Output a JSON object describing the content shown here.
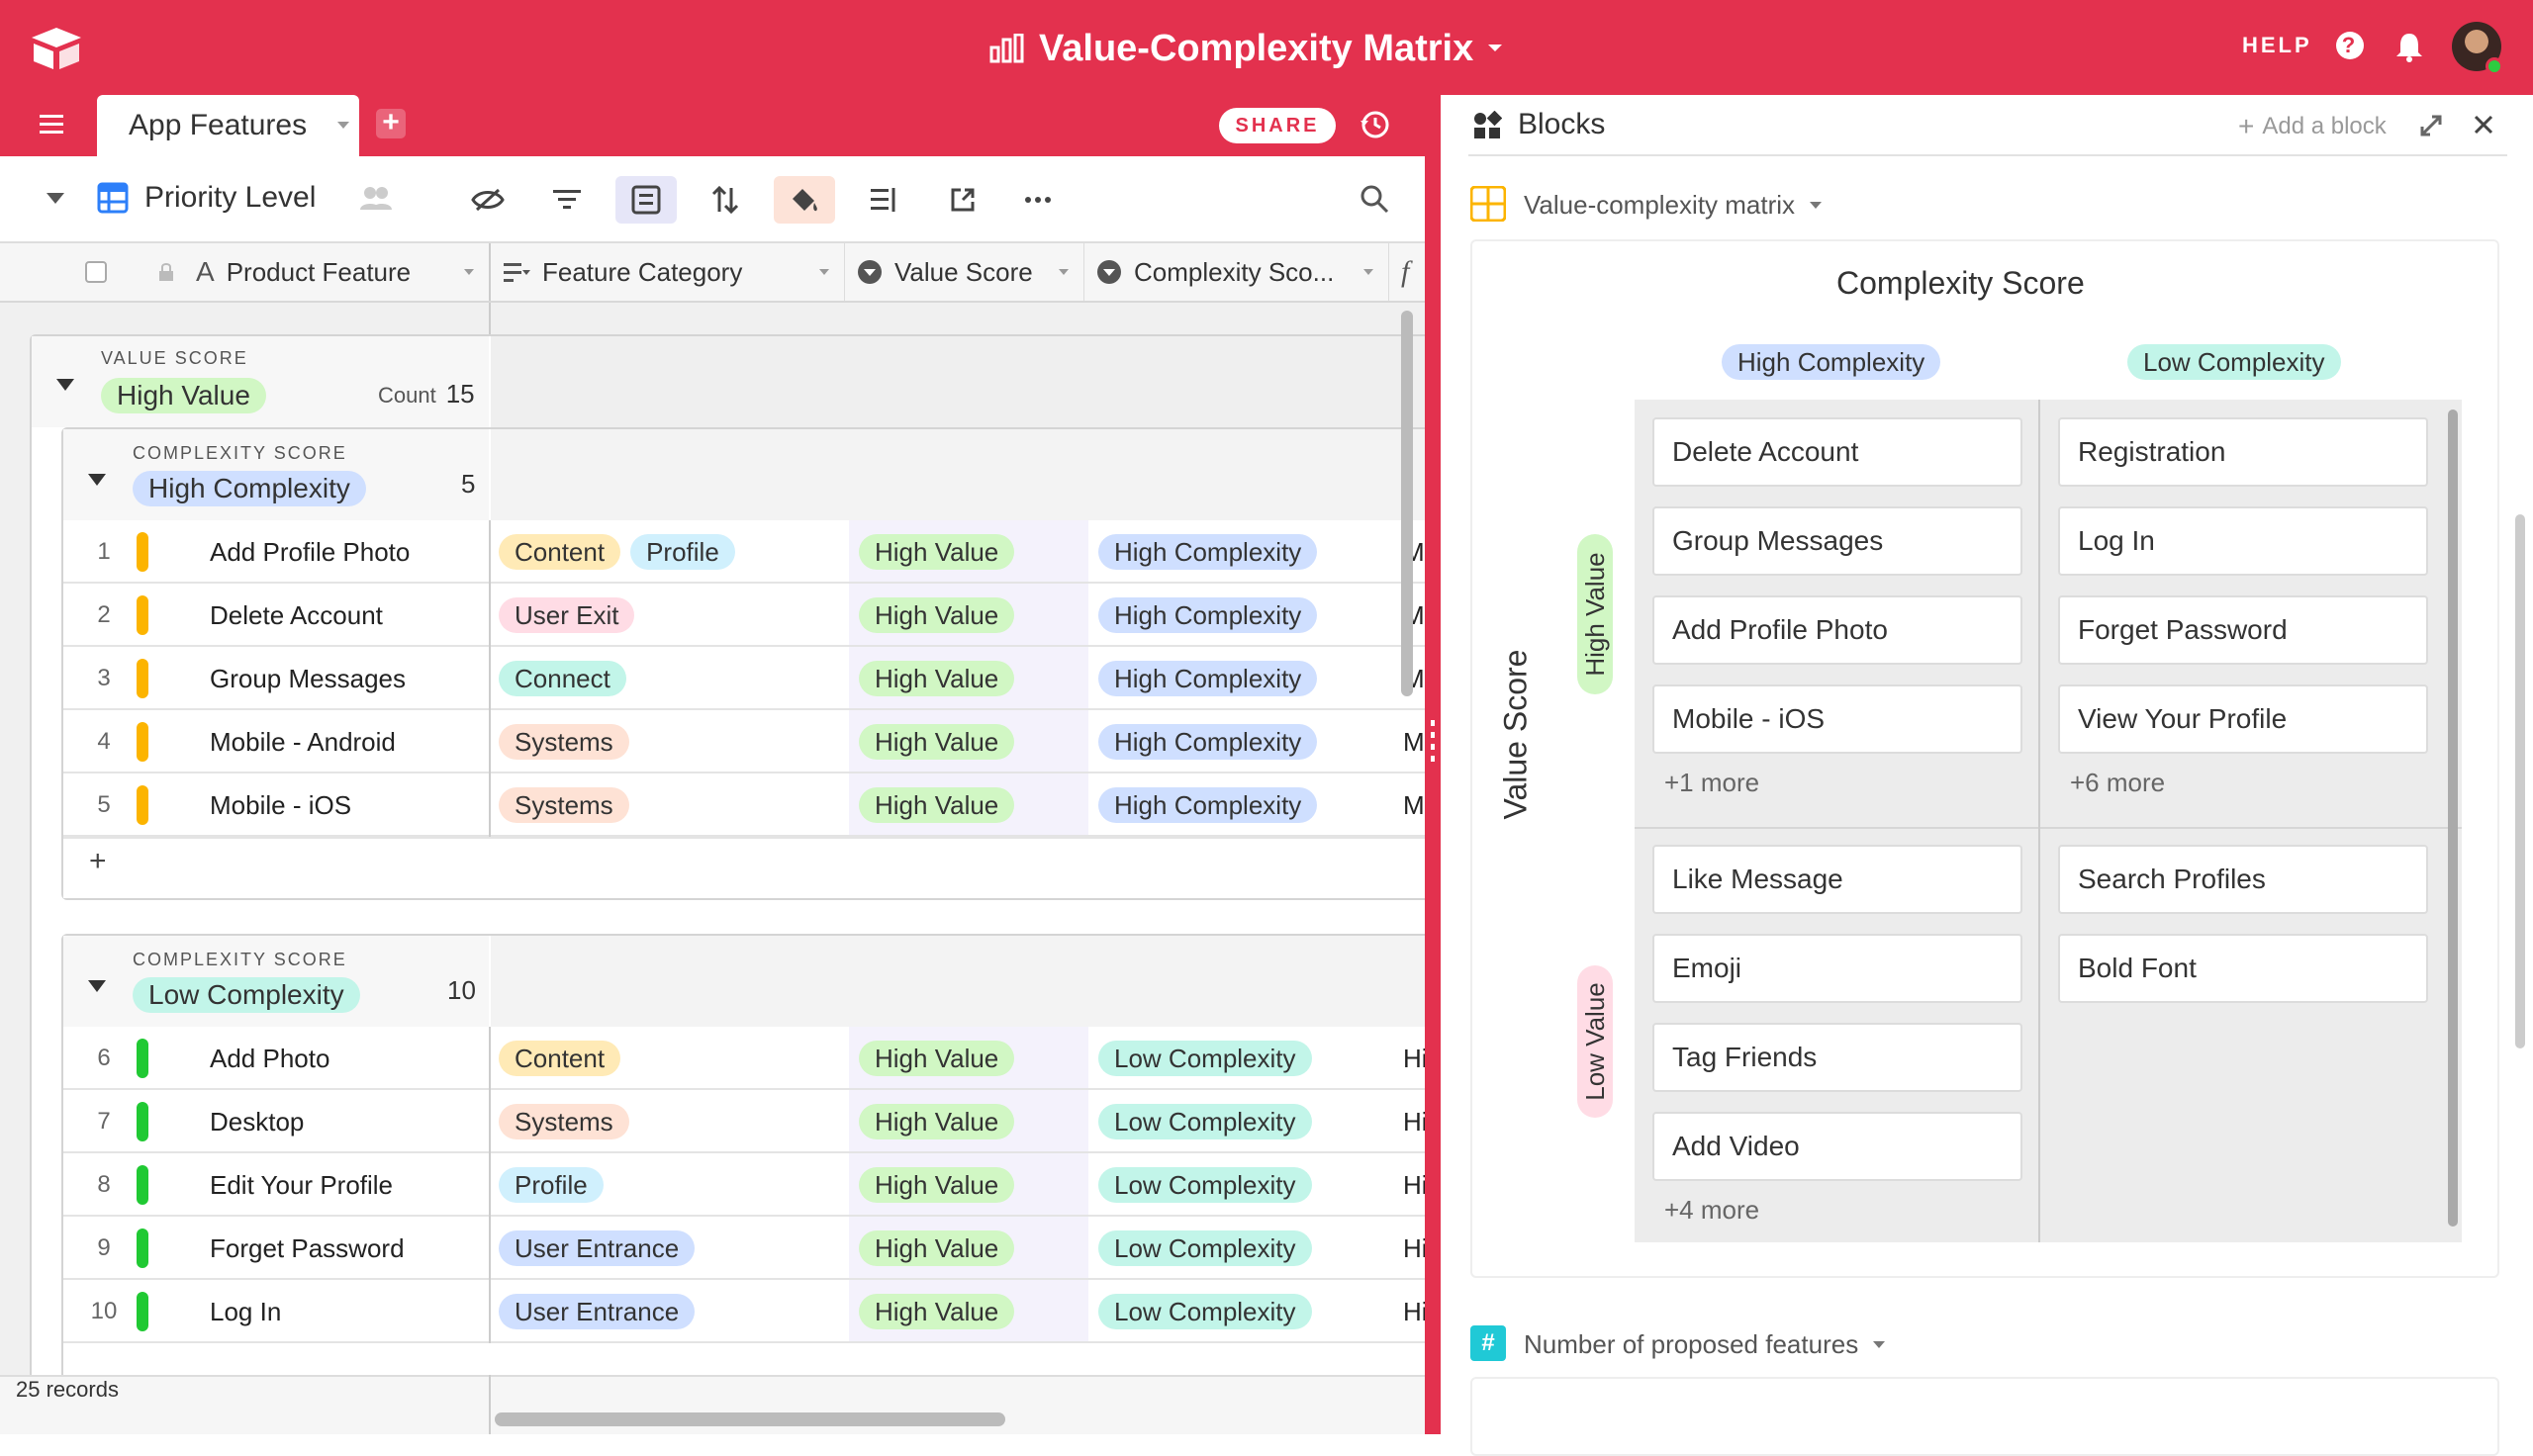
{
  "topbar": {
    "base_title": "Value-Complexity Matrix",
    "help_label": "HELP"
  },
  "tabbar": {
    "table_name": "App Features",
    "share_label": "SHARE"
  },
  "toolbar": {
    "view_name": "Priority Level"
  },
  "columns": {
    "product_feature": "Product Feature",
    "feature_category": "Feature Category",
    "value_score": "Value Score",
    "complexity_score": "Complexity Sco..."
  },
  "group_top": {
    "field_label": "VALUE SCORE",
    "value": "High Value",
    "count_label": "Count",
    "count": "15"
  },
  "group_high": {
    "field_label": "COMPLEXITY SCORE",
    "value": "High Complexity",
    "count": "5"
  },
  "group_low": {
    "field_label": "COMPLEXITY SCORE",
    "value": "Low Complexity",
    "count": "10"
  },
  "rows_high": [
    {
      "num": "1",
      "name": "Add Profile Photo",
      "cat1": "Content",
      "cat2": "Profile",
      "value": "High Value",
      "complexity": "High Complexity",
      "f": "M"
    },
    {
      "num": "2",
      "name": "Delete Account",
      "cat1": "User Exit",
      "value": "High Value",
      "complexity": "High Complexity",
      "f": "M"
    },
    {
      "num": "3",
      "name": "Group Messages",
      "cat1": "Connect",
      "value": "High Value",
      "complexity": "High Complexity",
      "f": "M"
    },
    {
      "num": "4",
      "name": "Mobile - Android",
      "cat1": "Systems",
      "value": "High Value",
      "complexity": "High Complexity",
      "f": "M"
    },
    {
      "num": "5",
      "name": "Mobile - iOS",
      "cat1": "Systems",
      "value": "High Value",
      "complexity": "High Complexity",
      "f": "M"
    }
  ],
  "rows_low": [
    {
      "num": "6",
      "name": "Add Photo",
      "cat1": "Content",
      "value": "High Value",
      "complexity": "Low Complexity",
      "f": "Hi"
    },
    {
      "num": "7",
      "name": "Desktop",
      "cat1": "Systems",
      "value": "High Value",
      "complexity": "Low Complexity",
      "f": "Hi"
    },
    {
      "num": "8",
      "name": "Edit Your Profile",
      "cat1": "Profile",
      "value": "High Value",
      "complexity": "Low Complexity",
      "f": "Hi"
    },
    {
      "num": "9",
      "name": "Forget Password",
      "cat1": "User Entrance",
      "value": "High Value",
      "complexity": "Low Complexity",
      "f": "Hi"
    },
    {
      "num": "10",
      "name": "Log In",
      "cat1": "User Entrance",
      "value": "High Value",
      "complexity": "Low Complexity",
      "f": "Hi"
    }
  ],
  "add_row_label": "+",
  "footer": {
    "records": "25 records"
  },
  "blocks": {
    "panel_title": "Blocks",
    "add_block": "Add a block",
    "matrix_block_name": "Value-complexity matrix",
    "number_block_name": "Number of proposed features"
  },
  "matrix": {
    "x_title": "Complexity Score",
    "y_title": "Value Score",
    "col_high": "High Complexity",
    "col_low": "Low Complexity",
    "row_high": "High Value",
    "row_low": "Low Value",
    "hv_hc": [
      "Delete Account",
      "Group Messages",
      "Add Profile Photo",
      "Mobile - iOS"
    ],
    "hv_hc_more": "+1 more",
    "hv_lc": [
      "Registration",
      "Log In",
      "Forget Password",
      "View Your Profile"
    ],
    "hv_lc_more": "+6 more",
    "lv_hc": [
      "Like Message",
      "Emoji",
      "Tag Friends",
      "Add Video"
    ],
    "lv_hc_more": "+4 more",
    "lv_lc": [
      "Search Profiles",
      "Bold Font"
    ]
  },
  "colors": {
    "brand": "#e3314e",
    "high_value": "#d1f7c4",
    "low_value": "#ffdce5",
    "high_complexity": "#cfdfff",
    "low_complexity": "#c2f5e9",
    "content": "#ffeab6",
    "profile": "#d0f0fd",
    "user_exit": "#ffdce5",
    "connect": "#c2f5e9",
    "systems": "#fee2d5",
    "user_entrance": "#cfdfff"
  }
}
